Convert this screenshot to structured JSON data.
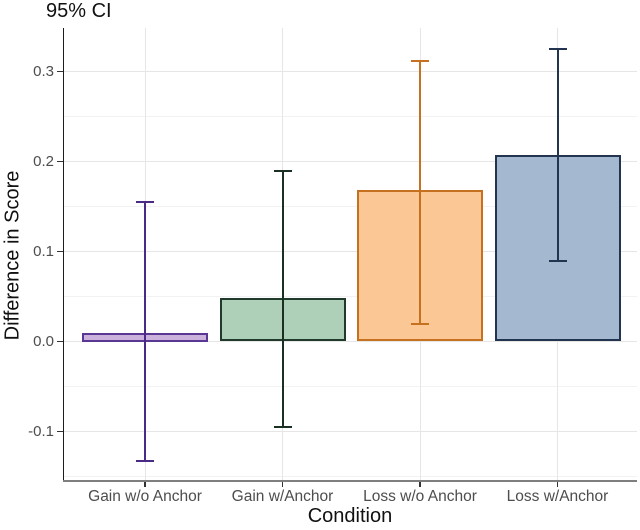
{
  "title": "95% CI",
  "chart_data": {
    "type": "bar",
    "title": "95% CI",
    "xlabel": "Condition",
    "ylabel": "Difference in Score",
    "categories": [
      "Gain w/o Anchor",
      "Gain w/Anchor",
      "Loss w/o Anchor",
      "Loss w/Anchor"
    ],
    "values": [
      0.01,
      0.048,
      0.168,
      0.207
    ],
    "error_low": [
      -0.133,
      -0.095,
      0.02,
      0.089
    ],
    "error_high": [
      0.155,
      0.19,
      0.312,
      0.325
    ],
    "ylim": [
      -0.155,
      0.348
    ],
    "y_major_ticks": [
      0.3,
      0.2,
      0.1,
      0.0,
      -0.1
    ],
    "y_minor_ticks": [
      0.25,
      0.15,
      0.05,
      -0.05,
      -0.15
    ],
    "bar_fill_colors": [
      "#cab2dd",
      "#aed0b8",
      "#fbc795",
      "#a4b9d0"
    ],
    "bar_border_colors": [
      "#5b3794",
      "#203a2b",
      "#c5711f",
      "#233450"
    ],
    "error_colors": [
      "#4a2a86",
      "#1b3022",
      "#c5711f",
      "#233450"
    ],
    "grid": "on",
    "legend": "none",
    "error_bar_type": "95% confidence interval"
  }
}
